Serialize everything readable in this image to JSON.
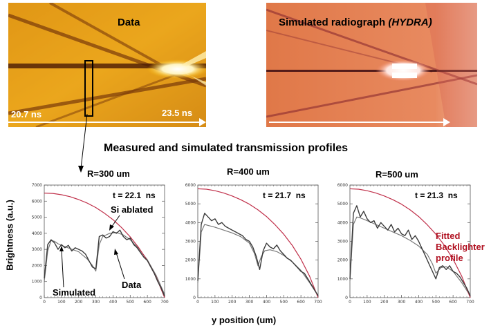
{
  "images": {
    "data": {
      "label": "Data",
      "time_start": "20.7 ns",
      "time_end": "23.5 ns"
    },
    "sim": {
      "label_prefix": "Simulated radiograph ",
      "label_italic": "(HYDRA)"
    }
  },
  "section_title": "Measured and simulated transmission profiles",
  "axis": {
    "ylabel": "Brightness (a.u.)",
    "xlabel": "y position (um)"
  },
  "annotations": {
    "si_ablated": "Si ablated",
    "data": "Data",
    "simulated": "Simulated",
    "fitted_line1": "Fitted",
    "fitted_line2": "Backlighter",
    "fitted_line3": "profile"
  },
  "colors": {
    "backlighter": "#c0304a",
    "data": "#3a3a3a",
    "sim": "#777777",
    "fitted_text": "#b01020"
  },
  "chart_data": [
    {
      "type": "line",
      "title": "R=300 um",
      "t_label": "t = 22.1  ns",
      "xlim": [
        0,
        700
      ],
      "ylim": [
        0,
        7000
      ],
      "x_ticks": [
        0,
        100,
        200,
        300,
        400,
        500,
        600,
        700
      ],
      "y_ticks": [
        0,
        1000,
        2000,
        3000,
        4000,
        5000,
        6000,
        7000
      ],
      "series": [
        {
          "key": "backlighter",
          "x": [
            0,
            50,
            100,
            150,
            200,
            250,
            300,
            350,
            400,
            450,
            500,
            550,
            600,
            650,
            700
          ],
          "y": [
            6500,
            6480,
            6400,
            6280,
            6100,
            5880,
            5600,
            5250,
            4850,
            4350,
            3780,
            3100,
            2300,
            1300,
            0
          ]
        },
        {
          "key": "data",
          "x": [
            0,
            20,
            40,
            60,
            80,
            100,
            120,
            140,
            160,
            180,
            200,
            220,
            240,
            260,
            280,
            300,
            320,
            340,
            360,
            380,
            400,
            420,
            440,
            460,
            480,
            500,
            520,
            540,
            560,
            580,
            600,
            620,
            640,
            660,
            680,
            700
          ],
          "y": [
            1200,
            3300,
            3600,
            3400,
            3000,
            3300,
            3100,
            3250,
            2900,
            3100,
            3000,
            2900,
            2700,
            2300,
            1900,
            1800,
            3800,
            3900,
            3700,
            3800,
            4100,
            4000,
            4200,
            3800,
            3600,
            3700,
            3300,
            3100,
            2800,
            2500,
            2300,
            1900,
            1500,
            1000,
            600,
            100
          ]
        },
        {
          "key": "sim",
          "x": [
            0,
            20,
            40,
            60,
            80,
            100,
            150,
            200,
            250,
            280,
            300,
            320,
            340,
            380,
            420,
            460,
            500,
            550,
            600,
            650,
            700
          ],
          "y": [
            1000,
            2900,
            3550,
            3500,
            3350,
            3250,
            3050,
            2850,
            2400,
            2000,
            1650,
            3300,
            3800,
            4000,
            4050,
            3900,
            3600,
            3050,
            2350,
            1400,
            200
          ]
        }
      ]
    },
    {
      "type": "line",
      "title": "R=400 um",
      "t_label": "t = 21.7  ns",
      "xlim": [
        0,
        700
      ],
      "ylim": [
        0,
        6000
      ],
      "x_ticks": [
        0,
        100,
        200,
        300,
        400,
        500,
        600,
        700
      ],
      "y_ticks": [
        0,
        1000,
        2000,
        3000,
        4000,
        5000,
        6000
      ],
      "series": [
        {
          "key": "backlighter",
          "x": [
            0,
            50,
            100,
            150,
            200,
            250,
            300,
            350,
            400,
            450,
            500,
            550,
            600,
            650,
            700
          ],
          "y": [
            5800,
            5780,
            5700,
            5580,
            5420,
            5220,
            4980,
            4680,
            4320,
            3880,
            3380,
            2780,
            2050,
            1150,
            0
          ]
        },
        {
          "key": "data",
          "x": [
            0,
            20,
            40,
            60,
            80,
            100,
            120,
            140,
            160,
            180,
            200,
            220,
            240,
            260,
            280,
            300,
            320,
            340,
            360,
            380,
            400,
            420,
            440,
            460,
            480,
            500,
            520,
            540,
            560,
            580,
            600,
            620,
            640,
            660,
            680,
            700
          ],
          "y": [
            900,
            3900,
            4500,
            4300,
            4100,
            4200,
            3900,
            4000,
            3800,
            3700,
            3600,
            3500,
            3400,
            3300,
            3100,
            3000,
            2700,
            2200,
            1500,
            2500,
            2900,
            2700,
            2600,
            2800,
            2500,
            2300,
            2100,
            2000,
            1800,
            1600,
            1400,
            1300,
            1000,
            700,
            400,
            100
          ]
        },
        {
          "key": "sim",
          "x": [
            0,
            20,
            40,
            60,
            100,
            150,
            200,
            250,
            300,
            330,
            350,
            370,
            390,
            420,
            460,
            500,
            550,
            600,
            650,
            700
          ],
          "y": [
            800,
            3500,
            3900,
            3850,
            3750,
            3600,
            3450,
            3250,
            2900,
            2350,
            1700,
            2200,
            2500,
            2550,
            2450,
            2250,
            1900,
            1450,
            800,
            100
          ]
        }
      ]
    },
    {
      "type": "line",
      "title": "R=500 um",
      "t_label": "t = 21.3  ns",
      "xlim": [
        0,
        700
      ],
      "ylim": [
        0,
        6000
      ],
      "x_ticks": [
        0,
        100,
        200,
        300,
        400,
        500,
        600,
        700
      ],
      "y_ticks": [
        0,
        1000,
        2000,
        3000,
        4000,
        5000,
        6000
      ],
      "series": [
        {
          "key": "backlighter",
          "x": [
            0,
            50,
            100,
            150,
            200,
            250,
            300,
            350,
            400,
            450,
            500,
            550,
            600,
            650,
            700
          ],
          "y": [
            5800,
            5780,
            5700,
            5580,
            5420,
            5220,
            4980,
            4680,
            4320,
            3880,
            3380,
            2780,
            2050,
            1150,
            0
          ]
        },
        {
          "key": "data",
          "x": [
            0,
            20,
            40,
            60,
            80,
            100,
            120,
            140,
            160,
            180,
            200,
            220,
            240,
            260,
            280,
            300,
            320,
            340,
            360,
            380,
            400,
            420,
            440,
            460,
            480,
            500,
            520,
            540,
            560,
            580,
            600,
            620,
            640,
            660,
            680,
            700
          ],
          "y": [
            1000,
            4500,
            4900,
            4300,
            4600,
            4200,
            4000,
            4100,
            3700,
            4000,
            3800,
            3600,
            3900,
            3500,
            3700,
            3400,
            3300,
            3600,
            3100,
            3300,
            3000,
            2600,
            2200,
            1800,
            1400,
            1000,
            1600,
            1700,
            1500,
            1700,
            1400,
            1300,
            1100,
            800,
            500,
            100
          ]
        },
        {
          "key": "sim",
          "x": [
            0,
            20,
            40,
            60,
            100,
            150,
            200,
            250,
            300,
            350,
            400,
            450,
            480,
            500,
            530,
            560,
            600,
            650,
            700
          ],
          "y": [
            900,
            3900,
            4300,
            4250,
            4100,
            3900,
            3700,
            3500,
            3300,
            3050,
            2750,
            2300,
            1800,
            1300,
            1600,
            1650,
            1400,
            800,
            100
          ]
        }
      ]
    }
  ]
}
